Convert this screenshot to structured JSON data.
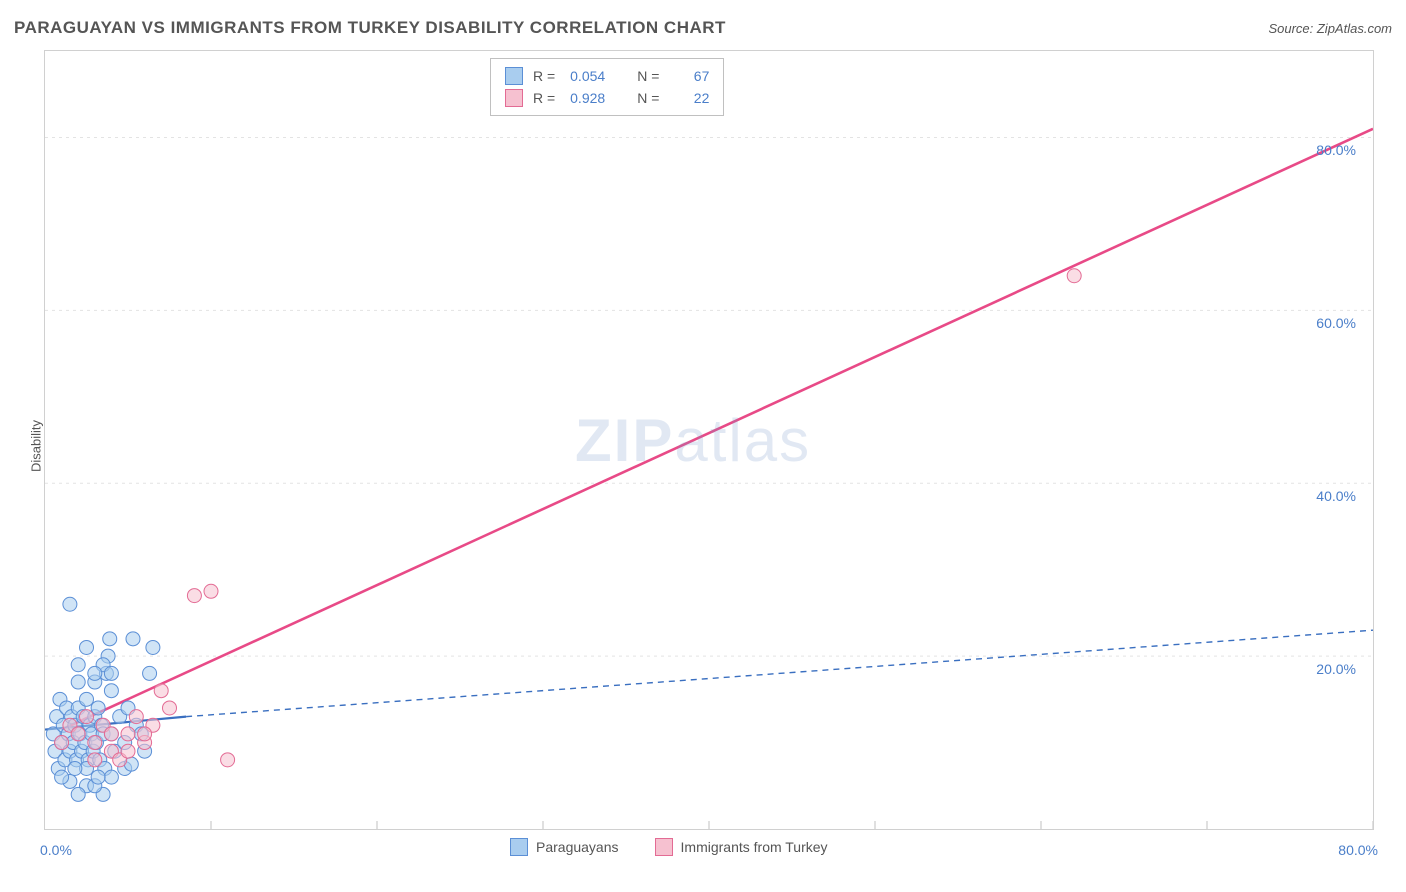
{
  "header": {
    "title": "PARAGUAYAN VS IMMIGRANTS FROM TURKEY DISABILITY CORRELATION CHART",
    "source": "Source: ZipAtlas.com"
  },
  "watermark": {
    "zip": "ZIP",
    "atlas": "atlas"
  },
  "chart": {
    "type": "scatter",
    "ylabel": "Disability",
    "background_color": "#ffffff",
    "border_color": "#d0d0d0",
    "grid_color": "#e3e3e3",
    "label_color": "#4a7ec9",
    "xlim": [
      0,
      80
    ],
    "ylim": [
      0,
      90
    ],
    "xtick_origin": "0.0%",
    "xtick_max": "80.0%",
    "yticks": [
      {
        "value": 20,
        "label": "20.0%"
      },
      {
        "value": 40,
        "label": "40.0%"
      },
      {
        "value": 60,
        "label": "60.0%"
      },
      {
        "value": 80,
        "label": "80.0%"
      }
    ],
    "x_minor_ticks": [
      10,
      20,
      30,
      40,
      50,
      60,
      70,
      80
    ],
    "series": [
      {
        "name": "Paraguayans",
        "fill": "#a9cdef",
        "stroke": "#5b8fd6",
        "line_color": "#3a6fc0",
        "line_dash_extended": "6,5",
        "marker_radius": 7,
        "fill_opacity": 0.55,
        "R_label": "R =",
        "R": "0.054",
        "N_label": "N =",
        "N": "67",
        "trend": {
          "x1": 0,
          "y1": 11.5,
          "x2": 8.5,
          "y2": 13.0,
          "x2_ext": 80,
          "y2_ext": 23.0
        },
        "points": [
          [
            0.5,
            11
          ],
          [
            0.6,
            9
          ],
          [
            0.7,
            13
          ],
          [
            0.8,
            7
          ],
          [
            0.9,
            15
          ],
          [
            1.0,
            10
          ],
          [
            1.1,
            12
          ],
          [
            1.2,
            8
          ],
          [
            1.3,
            14
          ],
          [
            1.4,
            11
          ],
          [
            1.5,
            9
          ],
          [
            1.6,
            13
          ],
          [
            1.7,
            10
          ],
          [
            1.8,
            12
          ],
          [
            1.9,
            8
          ],
          [
            2.0,
            14
          ],
          [
            2.1,
            11
          ],
          [
            2.2,
            9
          ],
          [
            2.3,
            13
          ],
          [
            2.4,
            10
          ],
          [
            2.5,
            15
          ],
          [
            2.6,
            8
          ],
          [
            2.7,
            12
          ],
          [
            2.8,
            11
          ],
          [
            2.9,
            9
          ],
          [
            3.0,
            13
          ],
          [
            3.1,
            10
          ],
          [
            3.2,
            14
          ],
          [
            3.3,
            8
          ],
          [
            3.4,
            12
          ],
          [
            3.5,
            11
          ],
          [
            3.6,
            7
          ],
          [
            4.8,
            7
          ],
          [
            3.7,
            18
          ],
          [
            3.8,
            20
          ],
          [
            3.9,
            22
          ],
          [
            1.5,
            26
          ],
          [
            4.0,
            11
          ],
          [
            4.2,
            9
          ],
          [
            4.5,
            13
          ],
          [
            4.8,
            10
          ],
          [
            5.0,
            14
          ],
          [
            5.2,
            7.5
          ],
          [
            5.5,
            12
          ],
          [
            5.8,
            11
          ],
          [
            6.0,
            9
          ],
          [
            1.5,
            5.5
          ],
          [
            2.5,
            5
          ],
          [
            3.5,
            4
          ],
          [
            6.3,
            18
          ],
          [
            6.5,
            21
          ],
          [
            2.0,
            19
          ],
          [
            2.5,
            21
          ],
          [
            3.0,
            17
          ],
          [
            3.5,
            19
          ],
          [
            4.0,
            16
          ],
          [
            5.3,
            22
          ],
          [
            2.0,
            4
          ],
          [
            3.0,
            5
          ],
          [
            1.0,
            6
          ],
          [
            4.0,
            6
          ],
          [
            2.5,
            7
          ],
          [
            1.8,
            7
          ],
          [
            3.2,
            6
          ],
          [
            2.0,
            17
          ],
          [
            3.0,
            18
          ],
          [
            4.0,
            18
          ]
        ]
      },
      {
        "name": "Immigrants from Turkey",
        "fill": "#f6c1d0",
        "stroke": "#e36b94",
        "line_color": "#e84a87",
        "marker_radius": 7,
        "fill_opacity": 0.55,
        "R_label": "R =",
        "R": "0.928",
        "N_label": "N =",
        "N": "22",
        "trend": {
          "x1": 1,
          "y1": 11.5,
          "x2": 80,
          "y2": 81
        },
        "points": [
          [
            1.0,
            10
          ],
          [
            1.5,
            12
          ],
          [
            2.0,
            11
          ],
          [
            2.5,
            13
          ],
          [
            3.0,
            10
          ],
          [
            3.5,
            12
          ],
          [
            4.0,
            9
          ],
          [
            4.5,
            8
          ],
          [
            5.0,
            11
          ],
          [
            5.5,
            13
          ],
          [
            6.0,
            10
          ],
          [
            6.5,
            12
          ],
          [
            7.0,
            16
          ],
          [
            7.5,
            14
          ],
          [
            9.0,
            27
          ],
          [
            10.0,
            27.5
          ],
          [
            11.0,
            8
          ],
          [
            4.0,
            11
          ],
          [
            5.0,
            9
          ],
          [
            6.0,
            11
          ],
          [
            3.0,
            8
          ],
          [
            62,
            64
          ]
        ]
      }
    ]
  }
}
